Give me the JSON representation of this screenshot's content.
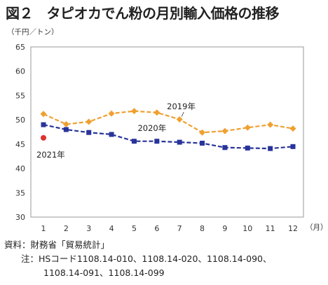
{
  "page": {
    "title": "図２　タピオカでん粉の月別輸入価格の推移",
    "unit": "（千円／トン）",
    "x_unit": "（月）",
    "source": "資料：財務省「貿易統計」",
    "note_line1": "注：HSコード1108.14-010、1108.14-020、1108.14-090、",
    "note_line2": "1108.14-091、1108.14-099"
  },
  "chart_data": {
    "type": "line",
    "title": "図２　タピオカでん粉の月別輸入価格の推移",
    "ylabel": "（千円／トン）",
    "xlabel": "（月）",
    "categories": [
      "1",
      "2",
      "3",
      "4",
      "5",
      "6",
      "7",
      "8",
      "9",
      "10",
      "11",
      "12"
    ],
    "ylim": [
      30,
      65
    ],
    "yticks": [
      30,
      35,
      40,
      45,
      50,
      55,
      60,
      65
    ],
    "grid": false,
    "series": [
      {
        "name": "2019年",
        "color": "#f0a030",
        "marker": "diamond",
        "dash": true,
        "values": [
          51.2,
          49.1,
          49.6,
          51.3,
          51.8,
          51.5,
          50.1,
          47.4,
          47.7,
          48.4,
          49.0,
          48.2
        ]
      },
      {
        "name": "2020年",
        "color": "#28349a",
        "marker": "square",
        "dash": true,
        "values": [
          49.0,
          48.0,
          47.4,
          47.0,
          45.6,
          45.6,
          45.4,
          45.2,
          44.3,
          44.2,
          44.1,
          44.5
        ]
      },
      {
        "name": "2021年",
        "color": "#e03030",
        "marker": "circle",
        "dash": false,
        "values": [
          46.3,
          null,
          null,
          null,
          null,
          null,
          null,
          null,
          null,
          null,
          null,
          null
        ]
      }
    ]
  }
}
